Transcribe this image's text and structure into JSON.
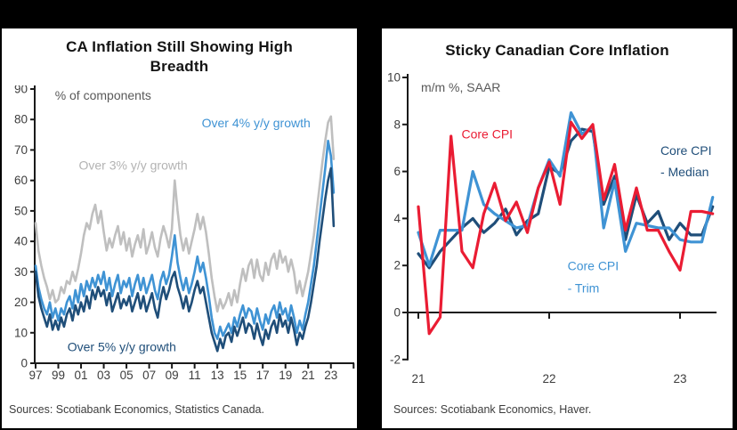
{
  "page": {
    "background": "#000000",
    "panel_background": "#ffffff"
  },
  "left_panel": {
    "title_lines": [
      "CA Inflation Still Showing High",
      "Breadth"
    ]
  },
  "right_panel": {
    "title_lines": [
      "Sticky Canadian Core Inflation"
    ]
  },
  "chart_data": [
    {
      "type": "line",
      "title": "CA Inflation Still Showing High Breadth",
      "ylabel": "% of components",
      "source": "Sources: Scotiabank Economics, Statistics Canada.",
      "x_start": 1997.0,
      "x_step": 0.25,
      "xlim": [
        1996.9,
        2025.2
      ],
      "ylim": [
        0,
        90
      ],
      "grid": false,
      "y_ticks": [
        0,
        10,
        20,
        30,
        40,
        50,
        60,
        70,
        80,
        90
      ],
      "x_ticks": [
        {
          "t": 1997,
          "label": "97"
        },
        {
          "t": 1999,
          "label": "99"
        },
        {
          "t": 2001,
          "label": "01"
        },
        {
          "t": 2003,
          "label": "03"
        },
        {
          "t": 2005,
          "label": "05"
        },
        {
          "t": 2007,
          "label": "07"
        },
        {
          "t": 2009,
          "label": "09"
        },
        {
          "t": 2011,
          "label": "11"
        },
        {
          "t": 2013,
          "label": "13"
        },
        {
          "t": 2015,
          "label": "15"
        },
        {
          "t": 2017,
          "label": "17"
        },
        {
          "t": 2019,
          "label": "19"
        },
        {
          "t": 2021,
          "label": "21"
        },
        {
          "t": 2023,
          "label": "23"
        },
        {
          "t": 2025,
          "label": ""
        }
      ],
      "series": [
        {
          "name": "Over 3% y/y growth",
          "color": "#bfbfbf",
          "values": [
            46,
            37,
            32,
            28,
            25,
            21,
            24,
            20,
            21,
            25,
            23,
            27,
            26,
            30,
            27,
            31,
            36,
            42,
            46,
            44,
            49,
            52,
            46,
            50,
            43,
            37,
            41,
            38,
            42,
            45,
            39,
            43,
            37,
            41,
            35,
            39,
            42,
            38,
            44,
            36,
            39,
            43,
            38,
            35,
            41,
            45,
            42,
            38,
            44,
            60,
            50,
            42,
            37,
            41,
            36,
            40,
            44,
            49,
            44,
            48,
            43,
            36,
            28,
            22,
            17,
            21,
            18,
            20,
            23,
            19,
            24,
            20,
            26,
            31,
            27,
            32,
            34,
            28,
            34,
            29,
            27,
            33,
            29,
            34,
            36,
            31,
            37,
            33,
            35,
            30,
            34,
            30,
            23,
            27,
            22,
            26,
            30,
            36,
            42,
            50,
            58,
            66,
            73,
            79,
            81,
            67
          ]
        },
        {
          "name": "Over 4% y/y growth",
          "color": "#3f93d4",
          "values": [
            32,
            25,
            21,
            18,
            16,
            20,
            15,
            18,
            14,
            18,
            16,
            20,
            22,
            18,
            24,
            20,
            26,
            22,
            27,
            24,
            28,
            25,
            29,
            26,
            30,
            24,
            28,
            22,
            26,
            29,
            23,
            27,
            25,
            28,
            22,
            26,
            29,
            24,
            28,
            23,
            26,
            29,
            24,
            21,
            27,
            30,
            26,
            29,
            35,
            42,
            33,
            28,
            24,
            28,
            23,
            26,
            30,
            35,
            30,
            33,
            28,
            22,
            15,
            10,
            8,
            12,
            9,
            11,
            13,
            10,
            15,
            12,
            16,
            19,
            15,
            18,
            17,
            13,
            18,
            14,
            11,
            16,
            13,
            17,
            19,
            15,
            20,
            16,
            18,
            14,
            19,
            15,
            10,
            14,
            11,
            16,
            20,
            26,
            32,
            40,
            48,
            56,
            64,
            73,
            68,
            56
          ]
        },
        {
          "name": "Over 5% y/y growth",
          "color": "#1f4e79",
          "values": [
            30,
            22,
            18,
            15,
            12,
            16,
            11,
            14,
            11,
            15,
            12,
            16,
            18,
            14,
            19,
            16,
            20,
            17,
            22,
            18,
            24,
            21,
            25,
            22,
            24,
            19,
            23,
            17,
            20,
            23,
            18,
            21,
            19,
            22,
            17,
            20,
            23,
            18,
            22,
            17,
            20,
            23,
            18,
            15,
            21,
            25,
            21,
            24,
            28,
            30,
            25,
            22,
            18,
            22,
            17,
            20,
            24,
            27,
            23,
            25,
            20,
            15,
            10,
            7,
            4,
            8,
            5,
            9,
            10,
            7,
            12,
            9,
            12,
            15,
            10,
            13,
            12,
            8,
            13,
            9,
            6,
            11,
            8,
            12,
            14,
            10,
            16,
            12,
            14,
            10,
            15,
            11,
            6,
            10,
            8,
            12,
            15,
            20,
            26,
            32,
            40,
            47,
            54,
            60,
            64,
            45
          ]
        }
      ],
      "annotations": [
        {
          "text": "% of components",
          "color": "#595959",
          "x": 1998.7,
          "y": 86.5,
          "anchor": "start"
        },
        {
          "text": "Over 4% y/y growth",
          "color": "#3f93d4",
          "x": 2021.2,
          "y": 77.5,
          "anchor": "end"
        },
        {
          "text": "Over 3% y/y growth",
          "color": "#b3b3b3",
          "x": 2000.8,
          "y": 63.5,
          "anchor": "start"
        },
        {
          "text": "Over 5% y/y growth",
          "color": "#1f4e79",
          "x": 1999.8,
          "y": 4.0,
          "anchor": "start"
        }
      ]
    },
    {
      "type": "line",
      "title": "Sticky Canadian Core Inflation",
      "ylabel": "m/m %, SAAR",
      "source": "Sources: Scotiabank Economics, Haver.",
      "x_start": 2021.0,
      "x_step": 0.0833333,
      "xlim": [
        2020.92,
        2023.45
      ],
      "ylim": [
        -2,
        10
      ],
      "grid": false,
      "y_ticks": [
        -2,
        0,
        2,
        4,
        6,
        8,
        10
      ],
      "x_ticks": [
        {
          "t": 2021,
          "label": "21"
        },
        {
          "t": 2022,
          "label": "22"
        },
        {
          "t": 2023,
          "label": "23"
        }
      ],
      "series": [
        {
          "name": "Core CPI - Median",
          "color": "#1f4e79",
          "values": [
            2.5,
            1.9,
            2.6,
            3.1,
            3.6,
            4.0,
            3.4,
            3.8,
            4.4,
            3.3,
            3.9,
            4.2,
            6.2,
            5.9,
            7.3,
            7.8,
            7.7,
            4.6,
            5.8,
            3.1,
            5.0,
            3.8,
            4.3,
            3.1,
            3.8,
            3.3,
            3.3,
            4.5
          ]
        },
        {
          "name": "Core CPI - Trim",
          "color": "#3f93d4",
          "values": [
            3.4,
            2.0,
            3.5,
            3.5,
            3.5,
            6.0,
            4.6,
            4.2,
            3.9,
            3.6,
            3.7,
            5.3,
            6.5,
            5.8,
            8.5,
            7.6,
            7.9,
            3.6,
            5.6,
            2.6,
            3.8,
            3.7,
            3.6,
            3.6,
            3.1,
            3.0,
            3.0,
            4.9
          ]
        },
        {
          "name": "Core CPI",
          "color": "#ea1c33",
          "values": [
            4.5,
            -0.9,
            -0.2,
            7.5,
            2.6,
            1.9,
            4.2,
            5.5,
            3.9,
            4.7,
            3.4,
            5.3,
            6.4,
            4.6,
            8.1,
            7.4,
            8.0,
            4.8,
            6.3,
            3.5,
            5.3,
            3.5,
            3.5,
            2.6,
            1.8,
            4.3,
            4.3,
            4.2
          ]
        }
      ],
      "annotations": [
        {
          "text": "m/m %, SAAR",
          "color": "#595959",
          "x": 2021.02,
          "y": 9.4,
          "anchor": "start"
        },
        {
          "text": "Core CPI",
          "color": "#ea1c33",
          "x": 2021.33,
          "y": 7.4,
          "anchor": "start"
        },
        {
          "text": "Core CPI",
          "color": "#1f4e79",
          "x": 2022.85,
          "y": 6.7,
          "anchor": "start"
        },
        {
          "text": "- Median",
          "color": "#1f4e79",
          "x": 2022.85,
          "y": 5.8,
          "anchor": "start"
        },
        {
          "text": "Core CPI",
          "color": "#3f93d4",
          "x": 2022.14,
          "y": 1.8,
          "anchor": "start"
        },
        {
          "text": "- Trim",
          "color": "#3f93d4",
          "x": 2022.14,
          "y": 0.85,
          "anchor": "start"
        }
      ]
    }
  ]
}
